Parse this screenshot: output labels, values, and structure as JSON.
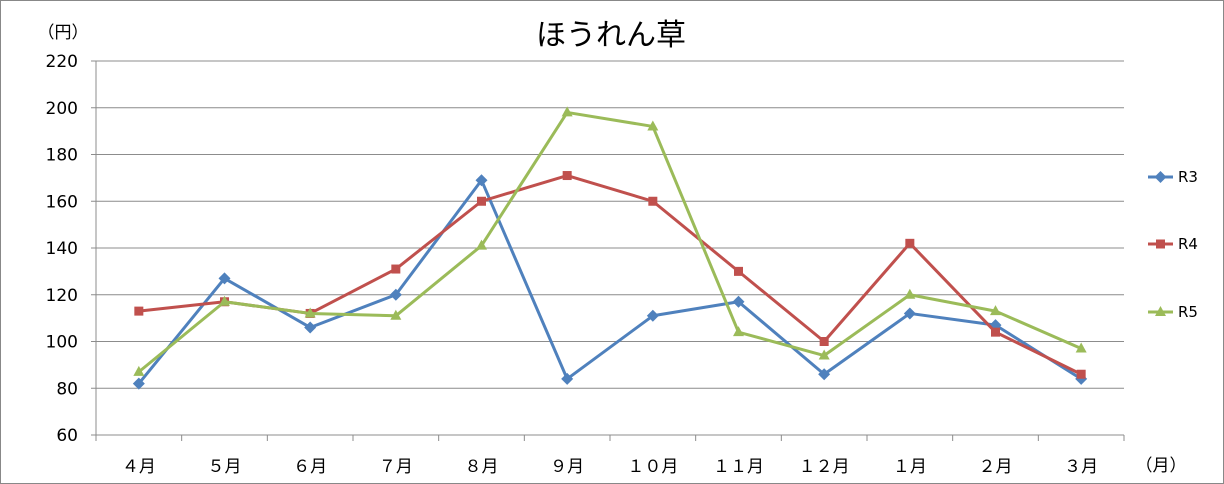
{
  "chart_data": {
    "type": "line",
    "title": "ほうれん草",
    "y_unit_label": "（円）",
    "x_unit_label": "（月）",
    "categories": [
      "４月",
      "５月",
      "６月",
      "７月",
      "８月",
      "９月",
      "１０月",
      "１１月",
      "１２月",
      "１月",
      "２月",
      "３月"
    ],
    "ylim": [
      60,
      220
    ],
    "yticks": [
      60,
      80,
      100,
      120,
      140,
      160,
      180,
      200,
      220
    ],
    "grid": true,
    "legend_position": "right",
    "series": [
      {
        "name": "R3",
        "color": "#4f81bd",
        "marker": "diamond",
        "values": [
          82,
          127,
          106,
          120,
          169,
          84,
          111,
          117,
          86,
          112,
          107,
          84
        ]
      },
      {
        "name": "R4",
        "color": "#c0504d",
        "marker": "square",
        "values": [
          113,
          117,
          112,
          131,
          160,
          171,
          160,
          130,
          100,
          142,
          104,
          86
        ]
      },
      {
        "name": "R5",
        "color": "#9bbb59",
        "marker": "triangle",
        "values": [
          87,
          117,
          112,
          111,
          141,
          198,
          192,
          104,
          94,
          120,
          113,
          97
        ]
      }
    ]
  }
}
